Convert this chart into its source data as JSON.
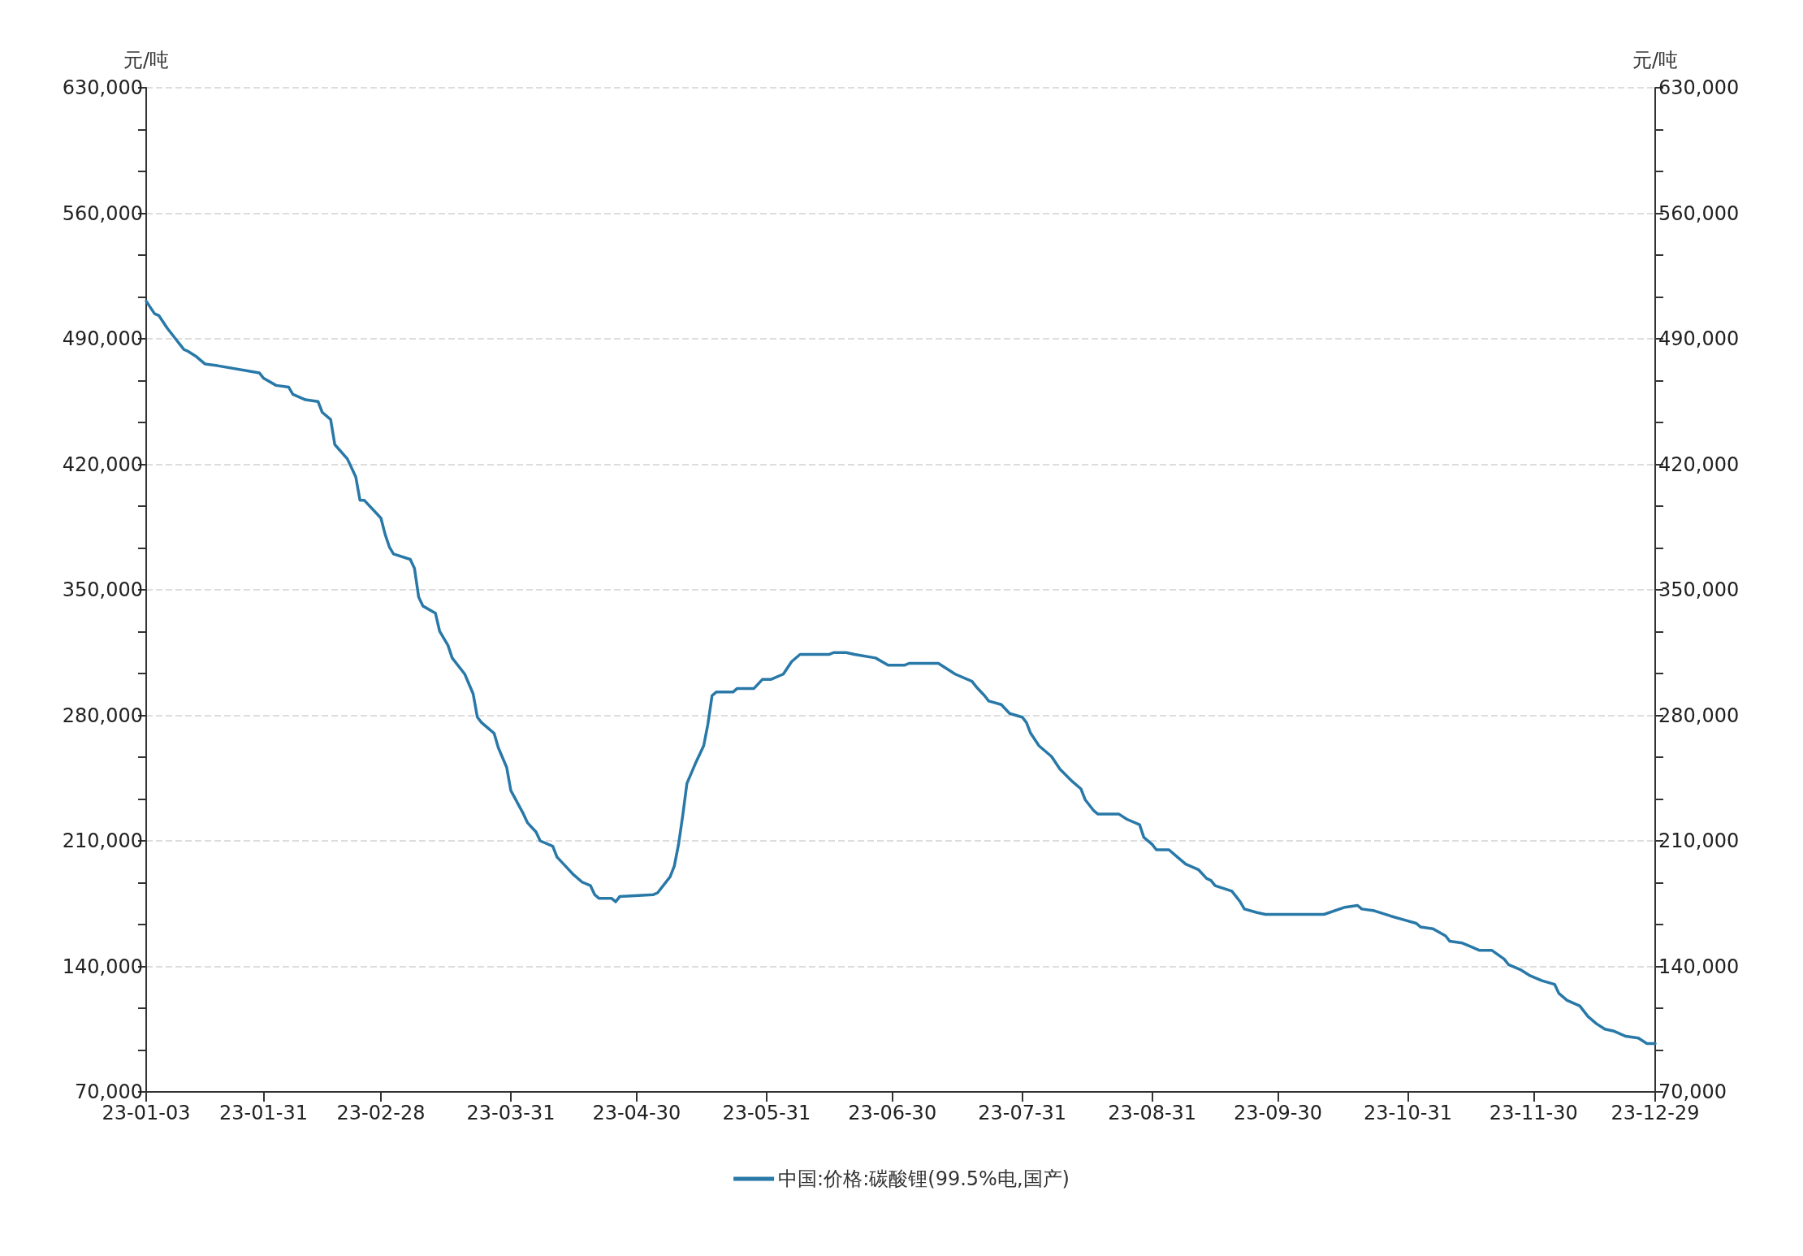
{
  "chart_data": {
    "type": "line",
    "ylabel": "元/吨",
    "y2label": "元/吨",
    "x": [
      "--01-03",
      "--01-05",
      "--01-06",
      "--01-08",
      "--01-10",
      "--01-11",
      "--01-12",
      "--01-13",
      "--01-15",
      "--01-17",
      "--01-20",
      "--01-30",
      "--01-31",
      "--02-03",
      "--02-06",
      "--02-07",
      "--02-08",
      "--02-10",
      "--02-13",
      "--02-14",
      "--02-16",
      "--02-17",
      "--02-20",
      "--02-22",
      "--02-23",
      "--02-24",
      "--02-28",
      "--03-01",
      "--03-02",
      "--03-03",
      "--03-07",
      "--03-08",
      "--03-09",
      "--03-10",
      "--03-13",
      "--03-14",
      "--03-16",
      "--03-17",
      "--03-20",
      "--03-22",
      "--03-23",
      "--03-24",
      "--03-27",
      "--03-28",
      "--03-30",
      "--03-31",
      "--04-03",
      "--04-04",
      "--04-06",
      "--04-07",
      "--04-10",
      "--04-11",
      "--04-13",
      "--04-15",
      "--04-17",
      "--04-19",
      "--04-20",
      "--04-21",
      "--04-24",
      "--04-25",
      "--04-26",
      "--05-04",
      "--05-05",
      "--05-08",
      "--05-09",
      "--05-10",
      "--05-11",
      "--05-12",
      "--05-14",
      "--05-16",
      "--05-17",
      "--05-18",
      "--05-19",
      "--05-23",
      "--05-24",
      "--05-28",
      "--05-30",
      "--06-01",
      "--06-04",
      "--06-06",
      "--06-08",
      "--06-15",
      "--06-16",
      "--06-19",
      "--06-21",
      "--06-26",
      "--06-29",
      "--07-03",
      "--07-04",
      "--07-11",
      "--07-15",
      "--07-19",
      "--07-20",
      "--07-22",
      "--07-23",
      "--07-26",
      "--07-28",
      "--07-31",
      "--08-01",
      "--08-02",
      "--08-04",
      "--08-07",
      "--08-09",
      "--08-12",
      "--08-14",
      "--08-15",
      "--08-17",
      "--08-18",
      "--08-23",
      "--08-25",
      "--08-28",
      "--08-29",
      "--08-31",
      "--09-01",
      "--09-04",
      "--09-06",
      "--09-08",
      "--09-11",
      "--09-13",
      "--09-14",
      "--09-15",
      "--09-19",
      "--09-21",
      "--09-22",
      "--09-25",
      "--09-27",
      "--10-11",
      "--10-16",
      "--10-19",
      "--10-20",
      "--10-23",
      "--10-27",
      "--10-30",
      "--11-02",
      "--11-03",
      "--11-06",
      "--11-09",
      "--11-10",
      "--11-13",
      "--11-15",
      "--11-17",
      "--11-20",
      "--11-23",
      "--11-24",
      "--11-27",
      "--11-29",
      "--12-02",
      "--12-05",
      "--12-06",
      "--12-08",
      "--12-11",
      "--12-13",
      "--12-15",
      "--12-17",
      "--12-19",
      "--12-22",
      "--12-25",
      "--12-27",
      "--12-29"
    ],
    "series": [
      {
        "name": "中国:价格:碳酸锂(99.5%电,国产)",
        "color": "#2878a8",
        "values": [
          511000,
          504000,
          503000,
          496000,
          490000,
          487000,
          484000,
          483000,
          480000,
          476000,
          475000,
          471000,
          468000,
          464000,
          463000,
          459000,
          458000,
          456000,
          455000,
          449000,
          445000,
          431000,
          423000,
          413000,
          400000,
          400000,
          390000,
          381000,
          374000,
          370000,
          367000,
          362000,
          346000,
          341000,
          337000,
          327000,
          319000,
          312000,
          303000,
          292000,
          279000,
          276000,
          270000,
          262000,
          251000,
          238000,
          225000,
          220000,
          215000,
          210000,
          207000,
          201000,
          196000,
          191000,
          187000,
          185000,
          180000,
          178000,
          178000,
          176000,
          179000,
          180000,
          181000,
          190000,
          196000,
          208000,
          224000,
          242000,
          253000,
          263000,
          275000,
          291000,
          293000,
          293000,
          295000,
          295000,
          300000,
          300000,
          303000,
          310000,
          314000,
          314000,
          315000,
          315000,
          314000,
          312000,
          308000,
          308000,
          309000,
          309000,
          303000,
          299000,
          296000,
          291000,
          288000,
          286000,
          281000,
          279000,
          276000,
          270000,
          263000,
          257000,
          250000,
          243000,
          239000,
          233000,
          227000,
          225000,
          225000,
          222000,
          219000,
          212000,
          208000,
          205000,
          205000,
          201000,
          197000,
          194000,
          189000,
          188000,
          185000,
          182000,
          176000,
          172000,
          170000,
          169000,
          169000,
          173000,
          174000,
          172000,
          171000,
          168000,
          166000,
          164000,
          162000,
          161000,
          157000,
          154000,
          153000,
          151000,
          149000,
          149000,
          144000,
          141000,
          138000,
          135000,
          132000,
          130000,
          125000,
          121000,
          118000,
          112000,
          108000,
          105000,
          104000,
          101000,
          100000,
          97000,
          97000
        ]
      }
    ],
    "xlim": [
      "--01-03",
      "--12-29"
    ],
    "xticks": [
      {
        "value": "--01-03",
        "label": "23-01-03"
      },
      {
        "value": "--01-31",
        "label": "23-01-31"
      },
      {
        "value": "--02-28",
        "label": "23-02-28"
      },
      {
        "value": "--03-31",
        "label": "23-03-31"
      },
      {
        "value": "--04-30",
        "label": "23-04-30"
      },
      {
        "value": "--05-31",
        "label": "23-05-31"
      },
      {
        "value": "--06-30",
        "label": "23-06-30"
      },
      {
        "value": "--07-31",
        "label": "23-07-31"
      },
      {
        "value": "--08-31",
        "label": "23-08-31"
      },
      {
        "value": "--09-30",
        "label": "23-09-30"
      },
      {
        "value": "--10-31",
        "label": "23-10-31"
      },
      {
        "value": "--11-30",
        "label": "23-11-30"
      },
      {
        "value": "--12-29",
        "label": "23-12-29"
      }
    ],
    "ylim": [
      70000,
      630000
    ],
    "yticks": [
      {
        "value": 70000,
        "label": "70,000"
      },
      {
        "value": 140000,
        "label": "140,000"
      },
      {
        "value": 210000,
        "label": "210,000"
      },
      {
        "value": 280000,
        "label": "280,000"
      },
      {
        "value": 350000,
        "label": "350,000"
      },
      {
        "value": 420000,
        "label": "420,000"
      },
      {
        "value": 490000,
        "label": "490,000"
      },
      {
        "value": 560000,
        "label": "560,000"
      },
      {
        "value": 630000,
        "label": "630,000"
      }
    ],
    "y2lim": [
      70000,
      630000
    ],
    "y2ticks": [
      {
        "value": 70000,
        "label": "70,000"
      },
      {
        "value": 140000,
        "label": "140,000"
      },
      {
        "value": 210000,
        "label": "210,000"
      },
      {
        "value": 280000,
        "label": "280,000"
      },
      {
        "value": 350000,
        "label": "350,000"
      },
      {
        "value": 420000,
        "label": "420,000"
      },
      {
        "value": 490000,
        "label": "490,000"
      },
      {
        "value": 560000,
        "label": "560,000"
      },
      {
        "value": 630000,
        "label": "630,000"
      }
    ],
    "grid": "y",
    "legend": "bottom",
    "marker": "none",
    "line_style": "solid"
  }
}
